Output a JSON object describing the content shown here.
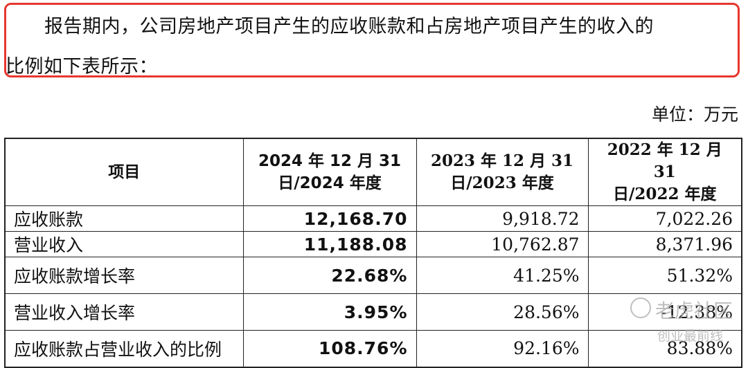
{
  "paragraph": {
    "line1": "报告期内，公司房地产项目产生的应收账款和占房地产项目产生的收入的",
    "line2": "比例如下表所示："
  },
  "unit": "单位：万元",
  "table": {
    "headers": [
      "项目",
      "2024 年 12 月 31 日/2024 年度",
      "2023 年 12 月 31 日/2023 年度",
      "2022 年 12 月 31 日/2022 年度"
    ],
    "header_lines": [
      [
        "项目",
        ""
      ],
      [
        "2024 年 12 月 31",
        "日/2024 年度"
      ],
      [
        "2023 年 12 月 31",
        "日/2023 年度"
      ],
      [
        "2022 年 12 月 31",
        "日/2022 年度"
      ]
    ],
    "rows": [
      [
        "应收账款",
        "12,168.70",
        "9,918.72",
        "7,022.26"
      ],
      [
        "营业收入",
        "11,188.08",
        "10,762.87",
        "8,371.96"
      ],
      [
        "应收账款增长率",
        "22.68%",
        "41.25%",
        "51.32%"
      ],
      [
        "营业收入增长率",
        "3.95%",
        "28.56%",
        "-12.38%"
      ],
      [
        "应收账款占营业收入的比例",
        "108.76%",
        "92.16%",
        "83.88%"
      ]
    ]
  },
  "watermark": {
    "line1": "老虎社区",
    "line2": "创业最前线"
  },
  "colors": {
    "highlight_border": "#e8362e",
    "watermark": "#aaaaaa"
  }
}
